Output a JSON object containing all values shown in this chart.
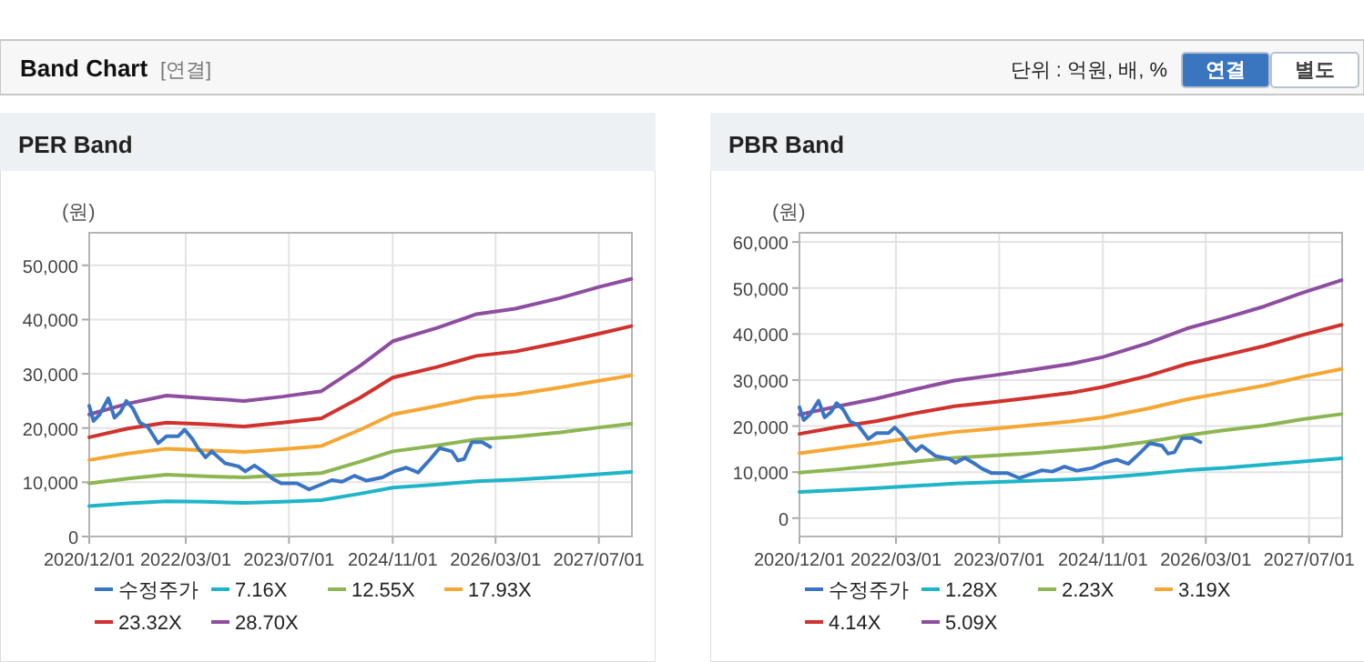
{
  "chart_data": [
    {
      "type": "line",
      "title": "PER Band",
      "ylabel": "(원)",
      "annotations": [
        "Band Chart",
        "[연결]",
        "단위 : 억원, 배, %",
        "연결",
        "별도"
      ],
      "xlim": [
        "2020-12-01",
        "2027-12-04"
      ],
      "xticks": [
        {
          "value": "2020-12-01",
          "label": "2020/12/01"
        },
        {
          "value": "2022-03-01",
          "label": "2022/03/01"
        },
        {
          "value": "2023-07-01",
          "label": "2023/07/01"
        },
        {
          "value": "2024-11-01",
          "label": "2024/11/01"
        },
        {
          "value": "2026-03-01",
          "label": "2026/03/01"
        },
        {
          "value": "2027-07-01",
          "label": "2027/07/01"
        }
      ],
      "ylim": [
        0,
        56000
      ],
      "yticks": [
        {
          "value": 0,
          "label": "0"
        },
        {
          "value": 10000,
          "label": "10,000"
        },
        {
          "value": 20000,
          "label": "20,000"
        },
        {
          "value": 30000,
          "label": "30,000"
        },
        {
          "value": 40000,
          "label": "40,000"
        },
        {
          "value": 50000,
          "label": "50,000"
        }
      ],
      "grid": true,
      "legend": "bottom",
      "marker": "none",
      "line_style": "solid",
      "series": [
        {
          "name": "수정주가",
          "color": "#3a75c4",
          "x": [
            "2020-12-01",
            "2020-12-21",
            "2021-01-19",
            "2021-03-01",
            "2021-03-30",
            "2021-04-28",
            "2021-05-25",
            "2021-06-25",
            "2021-07-28",
            "2021-09-03",
            "2021-10-22",
            "2021-11-30",
            "2022-01-25",
            "2022-02-24",
            "2022-04-01",
            "2022-04-28",
            "2022-06-03",
            "2022-07-01",
            "2022-09-03",
            "2022-11-07",
            "2022-12-07",
            "2023-01-19",
            "2023-03-01",
            "2023-04-13",
            "2023-05-25",
            "2023-08-07",
            "2023-10-04",
            "2023-12-01",
            "2024-01-19",
            "2024-03-07",
            "2024-05-04",
            "2024-07-01",
            "2024-09-13",
            "2024-11-07",
            "2025-01-04",
            "2025-03-01",
            "2025-04-28",
            "2025-06-10",
            "2025-08-07",
            "2025-09-04",
            "2025-10-04",
            "2025-11-10",
            "2025-12-28",
            "2026-02-04"
          ],
          "values": [
            24100,
            21300,
            22500,
            25500,
            21900,
            23000,
            25000,
            23600,
            21000,
            20200,
            17200,
            18500,
            18500,
            19700,
            18000,
            16300,
            14600,
            15700,
            13500,
            12900,
            12000,
            13100,
            12000,
            10700,
            9800,
            9800,
            8700,
            9600,
            10400,
            10100,
            11200,
            10300,
            10900,
            12000,
            12700,
            11800,
            14300,
            16300,
            15700,
            14000,
            14300,
            17400,
            17400,
            16500
          ]
        },
        {
          "name": "7.16X",
          "color": "#1fb5c8",
          "x": [
            "2020-12-01",
            "2021-06-01",
            "2021-12-01",
            "2022-06-01",
            "2022-12-01",
            "2023-06-01",
            "2023-12-01",
            "2024-06-01",
            "2024-11-01",
            "2025-06-01",
            "2025-12-01",
            "2026-06-01",
            "2027-01-01",
            "2027-07-01",
            "2027-12-01"
          ],
          "values": [
            5600,
            6100,
            6500,
            6400,
            6200,
            6400,
            6700,
            7900,
            9000,
            9600,
            10200,
            10500,
            11000,
            11500,
            11900
          ]
        },
        {
          "name": "12.55X",
          "color": "#8db652",
          "x": [
            "2020-12-01",
            "2021-06-01",
            "2021-12-01",
            "2022-06-01",
            "2022-12-01",
            "2023-06-01",
            "2023-12-01",
            "2024-06-01",
            "2024-11-01",
            "2025-06-01",
            "2025-12-01",
            "2026-06-01",
            "2027-01-01",
            "2027-07-01",
            "2027-12-01"
          ],
          "values": [
            9800,
            10700,
            11400,
            11100,
            10900,
            11300,
            11700,
            13800,
            15700,
            16800,
            17900,
            18400,
            19200,
            20100,
            20800
          ]
        },
        {
          "name": "17.93X",
          "color": "#f5a733",
          "x": [
            "2020-12-01",
            "2021-06-01",
            "2021-12-01",
            "2022-06-01",
            "2022-12-01",
            "2023-06-01",
            "2023-12-01",
            "2024-06-01",
            "2024-11-01",
            "2025-06-01",
            "2025-12-01",
            "2026-06-01",
            "2027-01-01",
            "2027-07-01",
            "2027-12-01"
          ],
          "values": [
            14100,
            15300,
            16200,
            15900,
            15600,
            16100,
            16700,
            19700,
            22500,
            24100,
            25600,
            26200,
            27500,
            28700,
            29700
          ]
        },
        {
          "name": "23.32X",
          "color": "#d0322e",
          "x": [
            "2020-12-01",
            "2021-06-01",
            "2021-12-01",
            "2022-06-01",
            "2022-12-01",
            "2023-06-01",
            "2023-12-01",
            "2024-06-01",
            "2024-11-01",
            "2025-06-01",
            "2025-12-01",
            "2026-06-01",
            "2027-01-01",
            "2027-07-01",
            "2027-12-01"
          ],
          "values": [
            18300,
            19900,
            21000,
            20700,
            20300,
            21000,
            21800,
            25600,
            29300,
            31300,
            33300,
            34100,
            35800,
            37400,
            38800
          ]
        },
        {
          "name": "28.70X",
          "color": "#8e4ea0",
          "x": [
            "2020-12-01",
            "2021-06-01",
            "2021-12-01",
            "2022-06-01",
            "2022-12-01",
            "2023-06-01",
            "2023-12-01",
            "2024-06-01",
            "2024-11-01",
            "2025-06-01",
            "2025-12-01",
            "2026-06-01",
            "2027-01-01",
            "2027-07-01",
            "2027-12-01"
          ],
          "values": [
            22500,
            24500,
            26000,
            25500,
            25000,
            25800,
            26800,
            31500,
            36000,
            38500,
            41000,
            42000,
            44000,
            46000,
            47500
          ]
        }
      ]
    },
    {
      "type": "line",
      "title": "PBR Band",
      "ylabel": "(원)",
      "xlim": [
        "2020-12-01",
        "2027-12-04"
      ],
      "xticks": [
        {
          "value": "2020-12-01",
          "label": "2020/12/01"
        },
        {
          "value": "2022-03-01",
          "label": "2022/03/01"
        },
        {
          "value": "2023-07-01",
          "label": "2023/07/01"
        },
        {
          "value": "2024-11-01",
          "label": "2024/11/01"
        },
        {
          "value": "2026-03-01",
          "label": "2026/03/01"
        },
        {
          "value": "2027-07-01",
          "label": "2027/07/01"
        }
      ],
      "ylim": [
        -4000,
        62000
      ],
      "yticks": [
        {
          "value": 0,
          "label": "0"
        },
        {
          "value": 10000,
          "label": "10,000"
        },
        {
          "value": 20000,
          "label": "20,000"
        },
        {
          "value": 30000,
          "label": "30,000"
        },
        {
          "value": 40000,
          "label": "40,000"
        },
        {
          "value": 50000,
          "label": "50,000"
        },
        {
          "value": 60000,
          "label": "60,000"
        }
      ],
      "grid": true,
      "legend": "bottom",
      "marker": "none",
      "line_style": "solid",
      "series": [
        {
          "name": "수정주가",
          "color": "#3a75c4",
          "x": [
            "2020-12-01",
            "2020-12-21",
            "2021-01-19",
            "2021-03-01",
            "2021-03-30",
            "2021-04-28",
            "2021-05-25",
            "2021-06-25",
            "2021-07-28",
            "2021-09-03",
            "2021-10-22",
            "2021-11-30",
            "2022-01-25",
            "2022-02-24",
            "2022-04-01",
            "2022-04-28",
            "2022-06-03",
            "2022-07-01",
            "2022-09-03",
            "2022-11-07",
            "2022-12-07",
            "2023-01-19",
            "2023-03-01",
            "2023-04-13",
            "2023-05-25",
            "2023-08-07",
            "2023-10-04",
            "2023-12-01",
            "2024-01-19",
            "2024-03-07",
            "2024-05-04",
            "2024-07-01",
            "2024-09-13",
            "2024-11-07",
            "2025-01-04",
            "2025-03-01",
            "2025-04-28",
            "2025-06-10",
            "2025-08-07",
            "2025-09-04",
            "2025-10-04",
            "2025-11-10",
            "2025-12-28",
            "2026-02-04"
          ],
          "values": [
            24100,
            21300,
            22500,
            25500,
            21900,
            23000,
            25000,
            23600,
            21000,
            20200,
            17200,
            18500,
            18500,
            19700,
            18000,
            16300,
            14600,
            15700,
            13500,
            12900,
            12000,
            13100,
            12000,
            10700,
            9800,
            9800,
            8700,
            9600,
            10400,
            10100,
            11200,
            10300,
            10900,
            12000,
            12700,
            11800,
            14300,
            16300,
            15700,
            14000,
            14300,
            17400,
            17400,
            16500
          ]
        },
        {
          "name": "1.28X",
          "color": "#1fb5c8",
          "x": [
            "2020-12-01",
            "2021-06-01",
            "2021-12-01",
            "2022-06-01",
            "2022-12-01",
            "2023-06-01",
            "2023-12-01",
            "2024-06-01",
            "2024-11-01",
            "2025-06-01",
            "2025-12-01",
            "2026-06-01",
            "2026-12-01",
            "2027-06-01",
            "2027-12-01"
          ],
          "values": [
            5700,
            6100,
            6500,
            7000,
            7500,
            7800,
            8100,
            8400,
            8800,
            9600,
            10400,
            10900,
            11600,
            12300,
            13000
          ]
        },
        {
          "name": "2.23X",
          "color": "#8db652",
          "x": [
            "2020-12-01",
            "2021-06-01",
            "2021-12-01",
            "2022-06-01",
            "2022-12-01",
            "2023-06-01",
            "2023-12-01",
            "2024-06-01",
            "2024-11-01",
            "2025-06-01",
            "2025-12-01",
            "2026-06-01",
            "2026-12-01",
            "2027-06-01",
            "2027-12-01"
          ],
          "values": [
            9900,
            10600,
            11400,
            12300,
            13100,
            13600,
            14100,
            14700,
            15300,
            16600,
            18000,
            19100,
            20100,
            21500,
            22600
          ]
        },
        {
          "name": "3.19X",
          "color": "#f5a733",
          "x": [
            "2020-12-01",
            "2021-06-01",
            "2021-12-01",
            "2022-06-01",
            "2022-12-01",
            "2023-06-01",
            "2023-12-01",
            "2024-06-01",
            "2024-11-01",
            "2025-06-01",
            "2025-12-01",
            "2026-06-01",
            "2026-12-01",
            "2027-06-01",
            "2027-12-01"
          ],
          "values": [
            14100,
            15200,
            16300,
            17600,
            18700,
            19400,
            20200,
            21000,
            21900,
            23800,
            25800,
            27300,
            28800,
            30700,
            32400
          ]
        },
        {
          "name": "4.14X",
          "color": "#d0322e",
          "x": [
            "2020-12-01",
            "2021-06-01",
            "2021-12-01",
            "2022-06-01",
            "2022-12-01",
            "2023-06-01",
            "2023-12-01",
            "2024-06-01",
            "2024-11-01",
            "2025-06-01",
            "2025-12-01",
            "2026-06-01",
            "2026-12-01",
            "2027-06-01",
            "2027-12-01"
          ],
          "values": [
            18300,
            19800,
            21100,
            22800,
            24300,
            25200,
            26200,
            27200,
            28500,
            30900,
            33500,
            35400,
            37400,
            39800,
            42000
          ]
        },
        {
          "name": "5.09X",
          "color": "#8e4ea0",
          "x": [
            "2020-12-01",
            "2021-06-01",
            "2021-12-01",
            "2022-06-01",
            "2022-12-01",
            "2023-06-01",
            "2023-12-01",
            "2024-06-01",
            "2024-11-01",
            "2025-06-01",
            "2025-12-01",
            "2026-06-01",
            "2026-12-01",
            "2027-06-01",
            "2027-12-01"
          ],
          "values": [
            22500,
            24300,
            26000,
            28000,
            29900,
            31000,
            32200,
            33500,
            35000,
            38000,
            41200,
            43500,
            46000,
            49000,
            51700
          ]
        }
      ]
    }
  ]
}
